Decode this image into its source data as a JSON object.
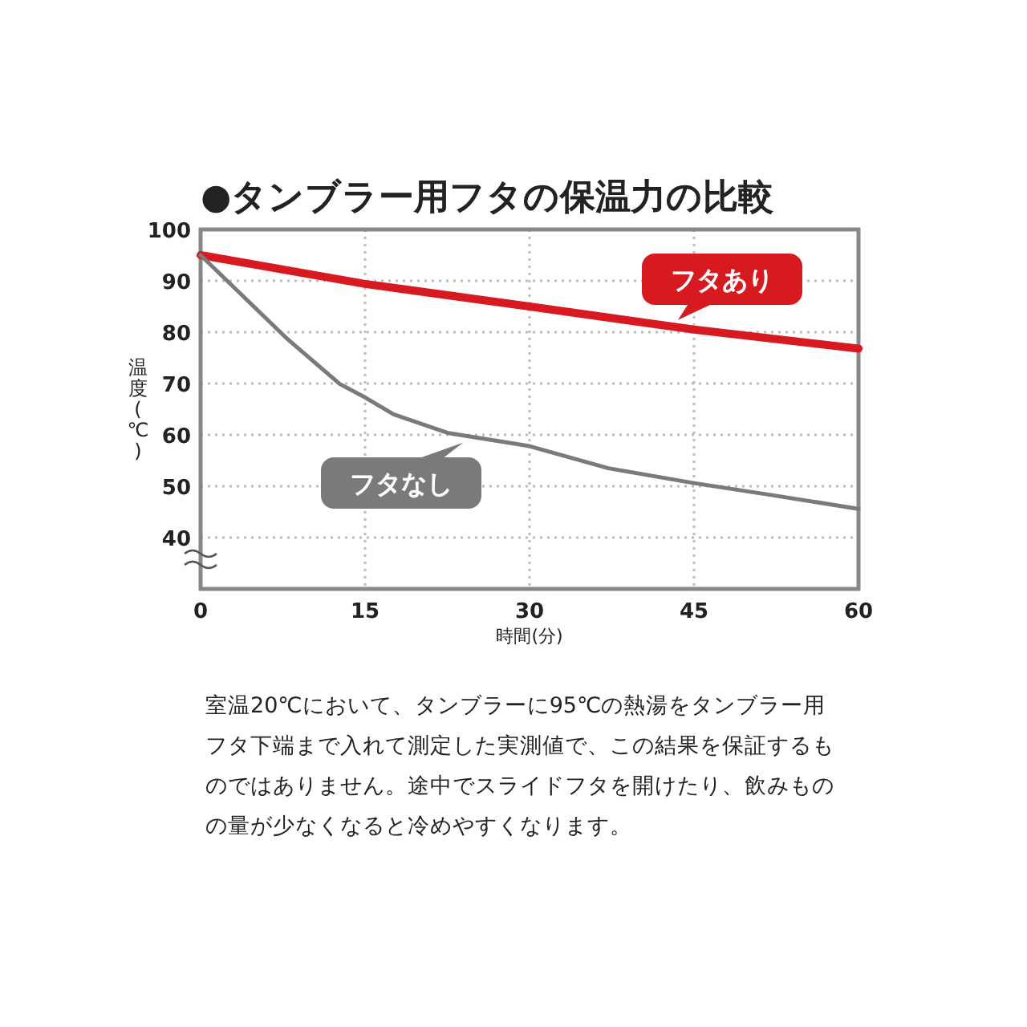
{
  "chart_data": {
    "type": "line",
    "title": "●タンブラー用フタの保温力の比較",
    "xlabel": "時間(分)",
    "ylabel": "温度(℃)",
    "xlim": [
      0,
      60
    ],
    "xticks": [
      0,
      15,
      30,
      45,
      60
    ],
    "ylim": [
      30,
      100
    ],
    "yticks": [
      40,
      50,
      60,
      70,
      80,
      90,
      100
    ],
    "grid": true,
    "legend": "bottom left",
    "series": [
      {
        "name": "フタあり",
        "color": "#d71920",
        "x": [
          0,
          15,
          30,
          45,
          60
        ],
        "values": [
          95,
          89.4,
          85,
          80.5,
          76.8
        ]
      },
      {
        "name": "フタなし",
        "color": "#7a7a7a",
        "x": [
          0,
          7.8,
          12.7,
          15,
          17.6,
          22.5,
          30,
          37.2,
          45,
          52,
          60
        ],
        "values": [
          95,
          78.9,
          69.9,
          67.3,
          64,
          60.4,
          57.8,
          53.5,
          50.6,
          48.3,
          45.6
        ]
      }
    ],
    "annotations": [
      "室温20℃において、タンブラーに95℃の熱湯をタンブラー用フタ下端まで入れて測定した実測値で、この結果を保証するものではありません。途中でスライドフタを開けたり、飲みものの量が少なくなると冷めやすくなります。"
    ]
  }
}
